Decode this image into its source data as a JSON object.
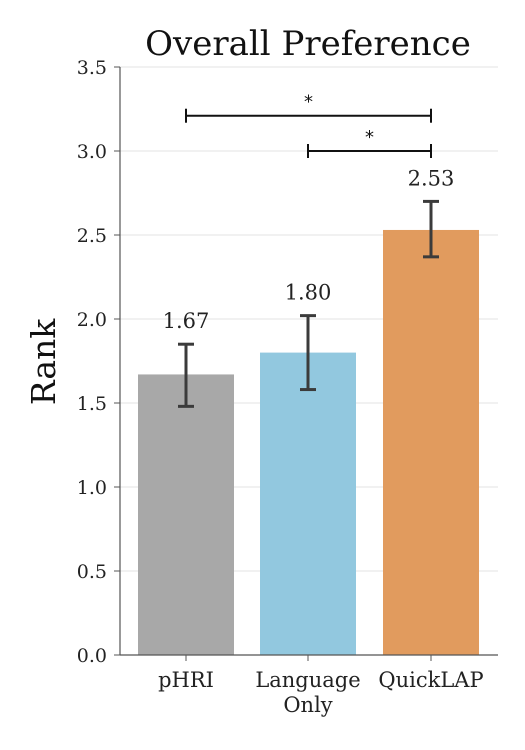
{
  "chart_data": {
    "type": "bar",
    "title": "Overall Preference",
    "xlabel": "",
    "ylabel": "Rank",
    "ylim": [
      0,
      3.5
    ],
    "yticks": [
      "0.0",
      "0.5",
      "1.0",
      "1.5",
      "2.0",
      "2.5",
      "3.0",
      "3.5"
    ],
    "grid": true,
    "categories": [
      [
        "pHRI"
      ],
      [
        "Language",
        "Only"
      ],
      [
        "QuickLAP"
      ]
    ],
    "values": [
      1.67,
      1.8,
      2.53
    ],
    "value_labels": [
      "1.67",
      "1.80",
      "2.53"
    ],
    "error_bars": [
      [
        1.48,
        1.85
      ],
      [
        1.58,
        2.02
      ],
      [
        2.37,
        2.7
      ]
    ],
    "colors": [
      "#a8a8a8",
      "#92c8df",
      "#e19b5e"
    ],
    "error_color": "#3b3b3b",
    "significance": [
      {
        "from": 0,
        "to": 2,
        "y": 3.21,
        "label": "*"
      },
      {
        "from": 1,
        "to": 2,
        "y": 3.0,
        "label": "*"
      }
    ]
  }
}
